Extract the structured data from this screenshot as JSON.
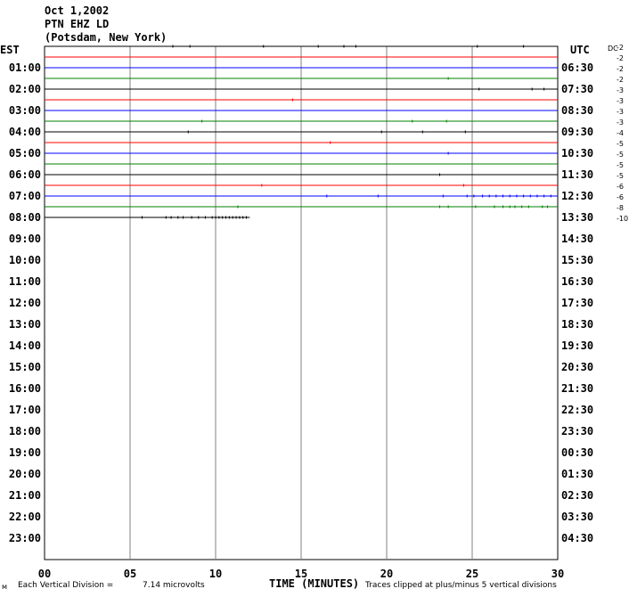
{
  "header": {
    "date": "Oct 1,2002",
    "station": "PTN EHZ LD",
    "location": "(Potsdam, New York)"
  },
  "footer": {
    "corner_mark": "ᴍ",
    "division_label": "Each Vertical Division =",
    "division_value": "7.14 microvolts",
    "clip_note": "Traces clipped at plus/minus 5 vertical divisions"
  },
  "chart_data": {
    "type": "line",
    "title": "",
    "xlabel": "TIME (MINUTES)",
    "ylabel_left": "EST",
    "ylabel_right": "UTC",
    "offsets_header": "DC",
    "xlim": [
      0,
      30
    ],
    "x_ticks": [
      "00",
      "05",
      "10",
      "15",
      "20",
      "25",
      "30"
    ],
    "x_tick_values": [
      0,
      5,
      10,
      15,
      20,
      25,
      30
    ],
    "rows_left": [
      "",
      "01:00",
      "02:00",
      "03:00",
      "04:00",
      "05:00",
      "06:00",
      "07:00",
      "08:00",
      "09:00",
      "10:00",
      "11:00",
      "12:00",
      "13:00",
      "14:00",
      "15:00",
      "16:00",
      "17:00",
      "18:00",
      "19:00",
      "20:00",
      "21:00",
      "22:00",
      "23:00"
    ],
    "rows_right": [
      "",
      "06:30",
      "07:30",
      "08:30",
      "09:30",
      "10:30",
      "11:30",
      "12:30",
      "13:30",
      "14:30",
      "15:30",
      "16:30",
      "17:30",
      "18:30",
      "19:30",
      "20:30",
      "21:30",
      "22:30",
      "23:30",
      "00:30",
      "01:30",
      "02:30",
      "03:30",
      "04:30"
    ],
    "trace_colors": [
      "#000000",
      "#ff0000",
      "#0000ff",
      "#008000"
    ],
    "traces": [
      {
        "offset": "-2",
        "end": 30,
        "spikes": [
          7.5,
          8.5,
          12.8,
          16,
          17.5,
          18.2,
          25.3,
          28
        ]
      },
      {
        "offset": "-2",
        "end": 30,
        "spikes": []
      },
      {
        "offset": "-2",
        "end": 30,
        "spikes": []
      },
      {
        "offset": "-2",
        "end": 30,
        "spikes": [
          23.6
        ]
      },
      {
        "offset": "-3",
        "end": 30,
        "spikes": [
          25.4,
          28.5,
          29.2
        ]
      },
      {
        "offset": "-3",
        "end": 30,
        "spikes": [
          14.5
        ]
      },
      {
        "offset": "-3",
        "end": 30,
        "spikes": []
      },
      {
        "offset": "-3",
        "end": 30,
        "spikes": [
          9.2,
          21.5,
          23.5
        ]
      },
      {
        "offset": "-4",
        "end": 30,
        "spikes": [
          8.4,
          19.7,
          22.1,
          24.6
        ]
      },
      {
        "offset": "-5",
        "end": 30,
        "spikes": [
          16.7
        ]
      },
      {
        "offset": "-5",
        "end": 30,
        "spikes": [
          23.6
        ]
      },
      {
        "offset": "-5",
        "end": 30,
        "spikes": []
      },
      {
        "offset": "-5",
        "end": 30,
        "spikes": [
          23.1
        ]
      },
      {
        "offset": "-6",
        "end": 30,
        "spikes": [
          12.7,
          24.5
        ]
      },
      {
        "offset": "-6",
        "end": 30,
        "spikes": [
          16.5,
          19.5,
          23.3,
          24.7,
          25.1,
          25.6,
          26,
          26.4,
          26.8,
          27.2,
          27.6,
          28,
          28.4,
          28.8,
          29.2,
          29.6
        ]
      },
      {
        "offset": "-8",
        "end": 30,
        "spikes": [
          11.3,
          23.1,
          23.6,
          25.2,
          26.3,
          26.8,
          27.2,
          27.5,
          27.9,
          28.3,
          29.1,
          29.4
        ]
      },
      {
        "offset": "-10",
        "end": 12,
        "spikes": [
          5.7,
          7.1,
          7.4,
          7.8,
          8.1,
          8.6,
          9.0,
          9.4,
          9.8,
          10.0,
          10.2,
          10.4,
          10.6,
          10.8,
          11.0,
          11.2,
          11.4,
          11.6,
          11.8
        ]
      }
    ],
    "grid": true
  }
}
